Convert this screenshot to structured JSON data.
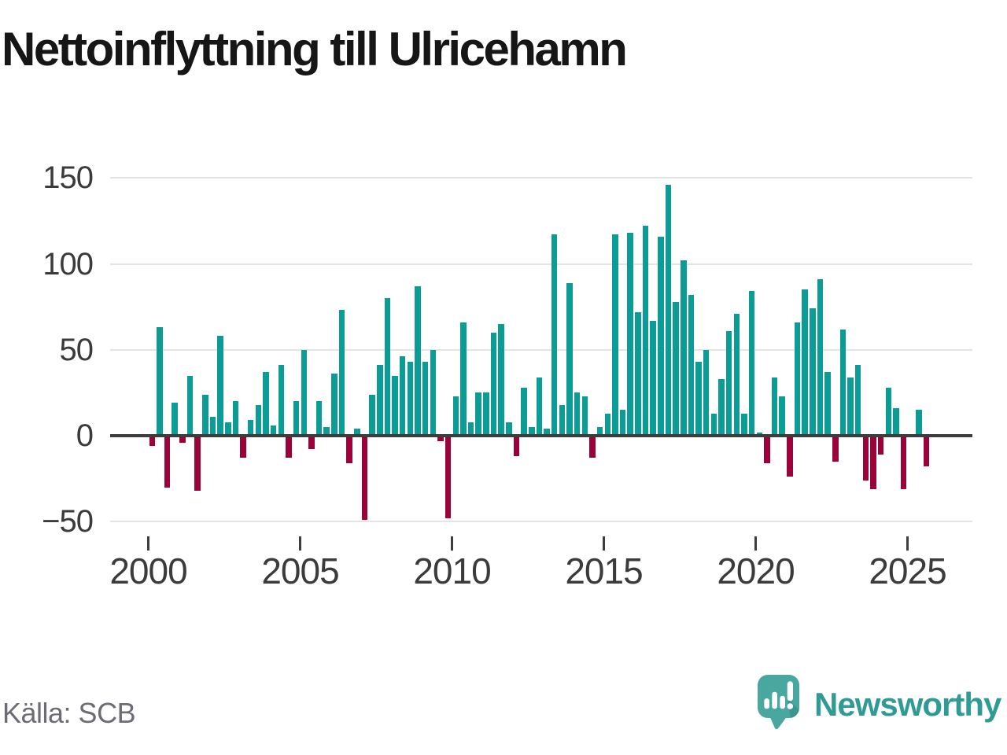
{
  "title": "Nettoinflyttning till Ulricehamn",
  "footer": {
    "source": "Källa: SCB",
    "brand": "Newsworthy"
  },
  "colors": {
    "positive": "#0b9c95",
    "negative": "#9b0239",
    "grid": "#e4e4e4",
    "axis": "#3d3d3d",
    "tick_label": "#3b3b3b",
    "title": "#161616",
    "source_text": "#6c6c74",
    "brand_teal": "#2f9b94",
    "badge_teal": "#48a79f"
  },
  "chart_data": {
    "type": "bar",
    "title": "Nettoinflyttning till Ulricehamn",
    "x_unit": "quarter",
    "start_year": 2000,
    "start_quarter": 1,
    "period_start": "2000 Q1",
    "period_end": "2025 Q3",
    "values": [
      -6,
      63,
      -30,
      19,
      -4,
      35,
      -32,
      24,
      11,
      58,
      8,
      20,
      -13,
      9,
      18,
      37,
      6,
      41,
      -13,
      20,
      50,
      -8,
      20,
      5,
      36,
      73,
      -16,
      4,
      -49,
      24,
      41,
      80,
      35,
      46,
      43,
      87,
      43,
      50,
      -3,
      -48,
      23,
      66,
      8,
      25,
      25,
      60,
      65,
      8,
      -12,
      28,
      5,
      34,
      4,
      117,
      18,
      89,
      25,
      23,
      -13,
      5,
      13,
      117,
      15,
      118,
      72,
      122,
      67,
      116,
      146,
      78,
      102,
      82,
      43,
      50,
      13,
      33,
      61,
      71,
      13,
      84,
      2,
      -16,
      34,
      23,
      -24,
      66,
      85,
      74,
      91,
      37,
      -15,
      62,
      34,
      41,
      -26,
      -31,
      -11,
      28,
      16,
      -31,
      0,
      15,
      -18
    ],
    "yticks": [
      150,
      100,
      50,
      0,
      -50
    ],
    "xticks": [
      2000,
      2005,
      2010,
      2015,
      2020,
      2025
    ],
    "ylim": [
      -60,
      160
    ],
    "grid": "horizontal",
    "legend": "none",
    "positive_color": "#0b9c95",
    "negative_color": "#9b0239",
    "source": "SCB"
  }
}
